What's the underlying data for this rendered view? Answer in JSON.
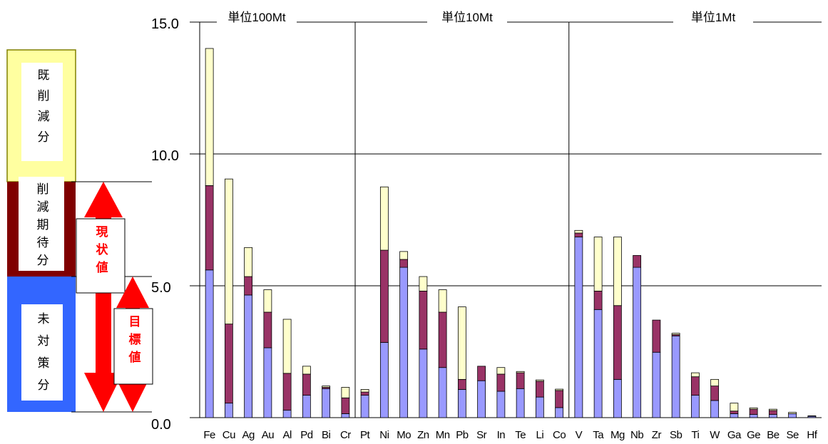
{
  "chart_data": {
    "type": "bar",
    "stacked": true,
    "y_ticks": [
      "15.0",
      "10.0",
      "5.0",
      "0.0"
    ],
    "ylim": [
      0,
      15
    ],
    "grid": true,
    "categories": [
      "Fe",
      "Cu",
      "Ag",
      "Au",
      "Al",
      "Pd",
      "Bi",
      "Cr",
      "Pt",
      "Ni",
      "Mo",
      "Zn",
      "Mn",
      "Pb",
      "Sr",
      "In",
      "Te",
      "Li",
      "Co",
      "V",
      "Ta",
      "Mg",
      "Nb",
      "Zr",
      "Sb",
      "Ti",
      "W",
      "Ga",
      "Ge",
      "Be",
      "Se",
      "Hf"
    ],
    "panels": [
      {
        "label": "単位100Mt",
        "categories": [
          "Fe",
          "Cu",
          "Ag",
          "Au",
          "Al",
          "Pd",
          "Bi",
          "Cr"
        ]
      },
      {
        "label": "単位10Mt",
        "categories": [
          "Pt",
          "Ni",
          "Mo",
          "Zn",
          "Mn",
          "Pb",
          "Sr",
          "In",
          "Te",
          "Li",
          "Co"
        ]
      },
      {
        "label": "単位1Mt",
        "categories": [
          "V",
          "Ta",
          "Mg",
          "Nb",
          "Zr",
          "Sb",
          "Ti",
          "W",
          "Ga",
          "Ge",
          "Be",
          "Se",
          "Hf"
        ]
      }
    ],
    "series": [
      {
        "key": "unaddressed",
        "color": "#9999ff",
        "values": [
          5.6,
          0.55,
          4.65,
          2.65,
          0.28,
          0.85,
          1.1,
          0.15,
          0.85,
          2.85,
          5.7,
          2.6,
          1.9,
          1.07,
          1.4,
          1.0,
          1.1,
          0.78,
          0.38,
          6.85,
          4.1,
          1.45,
          5.7,
          2.48,
          3.1,
          0.85,
          0.65,
          0.15,
          0.12,
          0.12,
          0.15,
          0.05
        ]
      },
      {
        "key": "expected",
        "color": "#993366",
        "values": [
          3.2,
          3.0,
          0.7,
          1.35,
          1.4,
          0.8,
          0.05,
          0.6,
          0.12,
          3.5,
          0.3,
          2.2,
          2.1,
          0.38,
          0.55,
          0.65,
          0.6,
          0.6,
          0.65,
          0.15,
          0.7,
          2.8,
          0.45,
          1.22,
          0.05,
          0.7,
          0.55,
          0.1,
          0.2,
          0.15,
          0.0,
          0.02
        ]
      },
      {
        "key": "already",
        "color": "#ffffcc",
        "values": [
          5.2,
          5.5,
          1.1,
          0.85,
          2.05,
          0.3,
          0.05,
          0.4,
          0.1,
          2.4,
          0.3,
          0.55,
          0.85,
          2.75,
          0.0,
          0.25,
          0.05,
          0.05,
          0.05,
          0.1,
          2.05,
          2.6,
          0.0,
          0.0,
          0.05,
          0.15,
          0.25,
          0.3,
          0.05,
          0.05,
          0.05,
          0.0
        ]
      }
    ]
  },
  "legend": {
    "already": "既削減分",
    "expected": "削減期待分",
    "unaddressed": "未対策分",
    "current": "現状値",
    "target": "目標値"
  },
  "colors": {
    "already": "#ffffa0",
    "expected": "#800000",
    "unaddressed": "#3366ff",
    "arrow": "#ff0000"
  }
}
